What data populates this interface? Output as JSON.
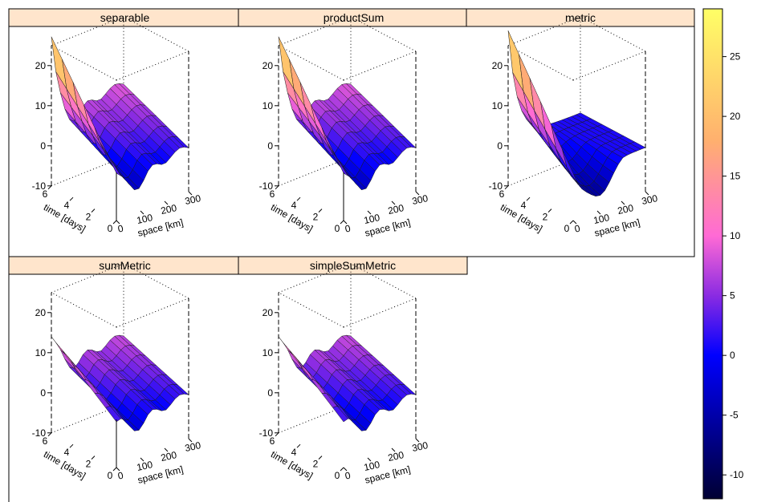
{
  "chart_data": {
    "type": "surface-3d-panels",
    "panels": [
      {
        "name": "separable",
        "peak": 22,
        "hasPole": true,
        "style": "sep"
      },
      {
        "name": "productSum",
        "peak": 22,
        "hasPole": true,
        "style": "sep"
      },
      {
        "name": "metric",
        "peak": 20,
        "hasPole": false,
        "style": "metric"
      },
      {
        "name": "sumMetric",
        "peak": 13,
        "hasPole": true,
        "style": "sum"
      },
      {
        "name": "simpleSumMetric",
        "peak": 13,
        "hasPole": false,
        "style": "sum"
      }
    ],
    "axes": {
      "xlabel": "space [km]",
      "ylabel": "time [days]",
      "x_ticks": [
        "0",
        "100",
        "200",
        "300"
      ],
      "y_ticks": [
        "0",
        "2",
        "4",
        "6"
      ],
      "z_ticks": [
        "-10",
        "0",
        "10",
        "20"
      ],
      "x_range": [
        0,
        300
      ],
      "y_range": [
        0,
        6
      ],
      "z_range": [
        -10,
        25
      ]
    },
    "colorbar": {
      "ticks": [
        "-10",
        "-5",
        "0",
        "5",
        "10",
        "15",
        "20",
        "25"
      ],
      "range": [
        -12,
        29
      ],
      "colors": [
        "#000033",
        "#0000ff",
        "#8a2be2",
        "#ff6ad5",
        "#ffb06e",
        "#ffff66"
      ],
      "stops": [
        -12,
        0,
        5,
        10,
        18,
        29
      ]
    }
  }
}
